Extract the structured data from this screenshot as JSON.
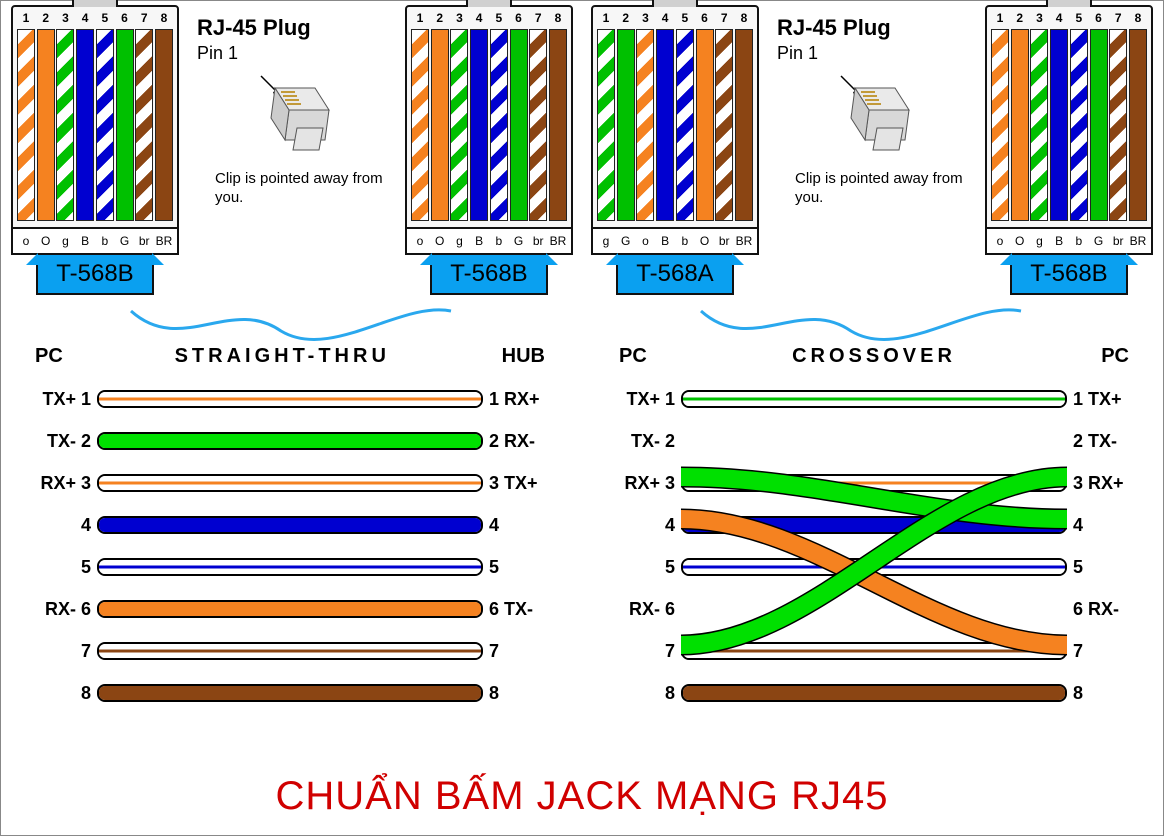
{
  "colors": {
    "orange": "#f58220",
    "green": "#00c000",
    "blue": "#0000d0",
    "brown": "#8B4513",
    "white": "#ffffff",
    "black": "#000000",
    "tag_bg": "#0aa0f0",
    "cable": "#2aa8ee",
    "title": "#d00000"
  },
  "pin_numbers": [
    "1",
    "2",
    "3",
    "4",
    "5",
    "6",
    "7",
    "8"
  ],
  "standards": {
    "T568B": {
      "label": "T-568B",
      "codes": [
        "o",
        "O",
        "g",
        "B",
        "b",
        "G",
        "br",
        "BR"
      ],
      "wires": [
        {
          "c1": "#ffffff",
          "c2": "#f58220"
        },
        {
          "c1": "#f58220",
          "c2": "#f58220"
        },
        {
          "c1": "#ffffff",
          "c2": "#00c000"
        },
        {
          "c1": "#0000d0",
          "c2": "#0000d0"
        },
        {
          "c1": "#ffffff",
          "c2": "#0000d0"
        },
        {
          "c1": "#00c000",
          "c2": "#00c000"
        },
        {
          "c1": "#ffffff",
          "c2": "#8B4513"
        },
        {
          "c1": "#8B4513",
          "c2": "#8B4513"
        }
      ]
    },
    "T568A": {
      "label": "T-568A",
      "codes": [
        "g",
        "G",
        "o",
        "B",
        "b",
        "O",
        "br",
        "BR"
      ],
      "wires": [
        {
          "c1": "#ffffff",
          "c2": "#00c000"
        },
        {
          "c1": "#00c000",
          "c2": "#00c000"
        },
        {
          "c1": "#ffffff",
          "c2": "#f58220"
        },
        {
          "c1": "#0000d0",
          "c2": "#0000d0"
        },
        {
          "c1": "#ffffff",
          "c2": "#0000d0"
        },
        {
          "c1": "#f58220",
          "c2": "#f58220"
        },
        {
          "c1": "#ffffff",
          "c2": "#8B4513"
        },
        {
          "c1": "#8B4513",
          "c2": "#8B4513"
        }
      ]
    }
  },
  "plugs": [
    {
      "standard": "T568B"
    },
    {
      "standard": "T568B"
    },
    {
      "standard": "T568A"
    },
    {
      "standard": "T568B"
    }
  ],
  "callout": {
    "title": "RJ-45 Plug",
    "pin1": "Pin 1",
    "note": "Clip is pointed away from you."
  },
  "panels": {
    "left": {
      "left_head": "PC",
      "mid_head": "STRAIGHT-THRU",
      "right_head": "HUB",
      "rows": [
        {
          "l": "TX+ 1",
          "r": "1 RX+",
          "type": "white",
          "stripe": "#f58220"
        },
        {
          "l": "TX- 2",
          "r": "2 RX-",
          "type": "solid",
          "fill": "#00e000"
        },
        {
          "l": "RX+ 3",
          "r": "3 TX+",
          "type": "white",
          "stripe": "#f58220"
        },
        {
          "l": "4",
          "r": "4",
          "type": "solid",
          "fill": "#0000d0"
        },
        {
          "l": "5",
          "r": "5",
          "type": "white",
          "stripe": "#0000d0"
        },
        {
          "l": "RX- 6",
          "r": "6 TX-",
          "type": "solid",
          "fill": "#f58220"
        },
        {
          "l": "7",
          "r": "7",
          "type": "white",
          "stripe": "#8B4513"
        },
        {
          "l": "8",
          "r": "8",
          "type": "solid",
          "fill": "#8B4513"
        }
      ]
    },
    "right": {
      "left_head": "PC",
      "mid_head": "CROSSOVER",
      "right_head": "PC",
      "rows": [
        {
          "l": "TX+ 1",
          "r": "1 TX+",
          "type": "white",
          "stripe": "#00c000"
        },
        {
          "l": "TX- 2",
          "r": "2 TX-",
          "type": "none"
        },
        {
          "l": "RX+ 3",
          "r": "3 RX+",
          "type": "white",
          "stripe": "#f58220"
        },
        {
          "l": "4",
          "r": "4",
          "type": "solid",
          "fill": "#0000d0"
        },
        {
          "l": "5",
          "r": "5",
          "type": "white",
          "stripe": "#0000d0"
        },
        {
          "l": "RX- 6",
          "r": "6 RX-",
          "type": "none"
        },
        {
          "l": "7",
          "r": "7",
          "type": "white",
          "stripe": "#8B4513"
        },
        {
          "l": "8",
          "r": "8",
          "type": "solid",
          "fill": "#8B4513"
        }
      ],
      "crossover_lines": [
        {
          "from_row": 1,
          "to_row": 2,
          "color": "#00e000",
          "width": 18
        },
        {
          "from_row": 2,
          "to_row": 5,
          "color": "#f58220",
          "width": 18
        },
        {
          "from_row": 5,
          "to_row": 1,
          "color": "#00e000",
          "width": 18
        }
      ]
    }
  },
  "footer": "CHUẨN BẤM JACK MẠNG RJ45"
}
